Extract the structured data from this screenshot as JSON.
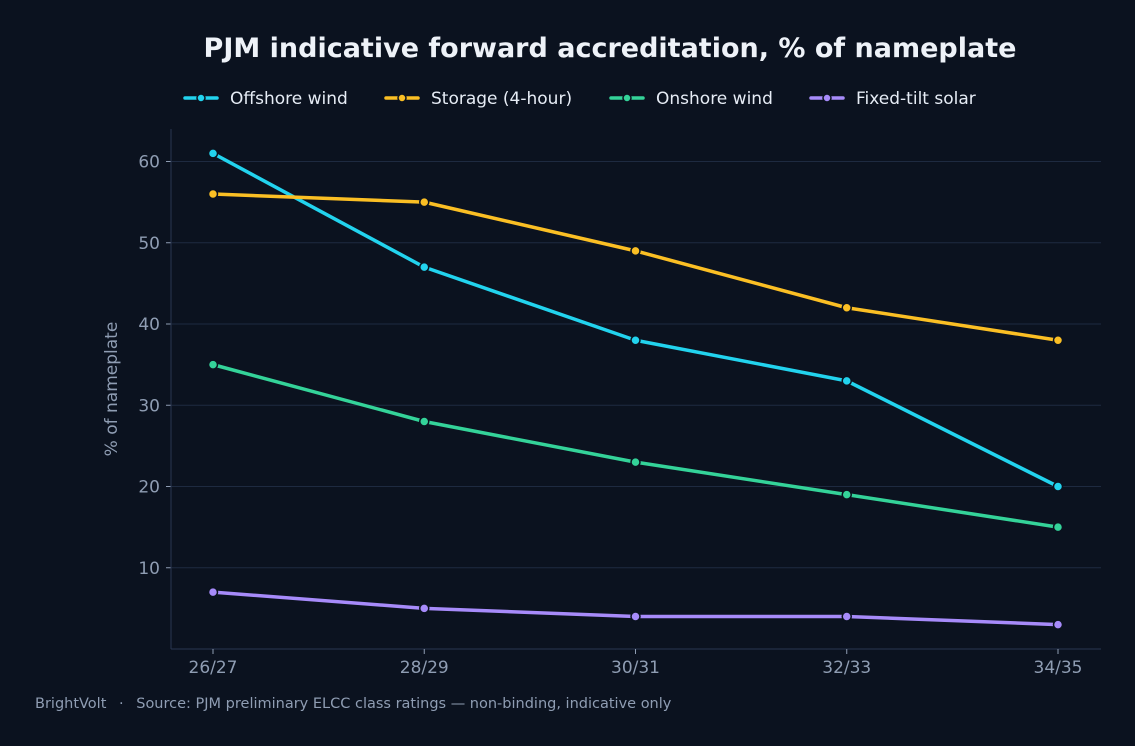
{
  "chart_data": {
    "type": "line",
    "title": "PJM indicative forward accreditation, % of nameplate",
    "xlabel": "",
    "ylabel": "% of nameplate",
    "categories": [
      "26/27",
      "28/29",
      "30/31",
      "32/33",
      "34/35"
    ],
    "ylim": [
      0,
      64
    ],
    "yticks": [
      10,
      20,
      30,
      40,
      50,
      60
    ],
    "grid": "horizontal",
    "legend_position": "top",
    "series": [
      {
        "name": "Offshore wind",
        "color": "#22d3ee",
        "values": [
          61,
          47,
          38,
          33,
          20
        ]
      },
      {
        "name": "Storage (4-hour)",
        "color": "#fbbf24",
        "values": [
          56,
          55,
          49,
          42,
          38
        ]
      },
      {
        "name": "Onshore wind",
        "color": "#34d399",
        "values": [
          35,
          28,
          23,
          19,
          15
        ]
      },
      {
        "name": "Fixed-tilt solar",
        "color": "#a78bfa",
        "values": [
          7,
          5,
          4,
          4,
          3
        ]
      }
    ]
  },
  "footer": {
    "brand": "BrightVolt",
    "separator": "·",
    "source": "Source: PJM preliminary ELCC class ratings — non-binding, indicative only"
  },
  "colors": {
    "background": "#0b121f",
    "grid": "#1e2a40",
    "axis": "#2a3650",
    "tick_label": "#8f9db3",
    "title": "#eef2f8"
  }
}
